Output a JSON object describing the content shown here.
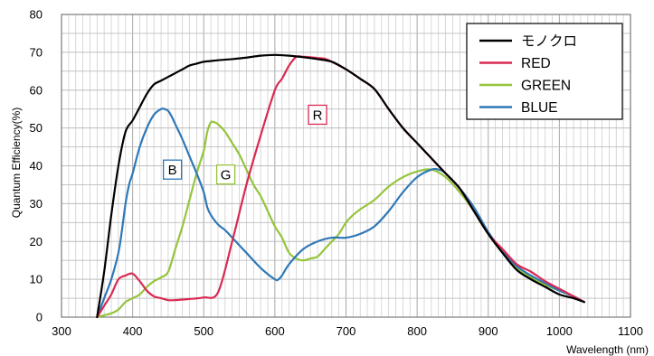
{
  "chart_data": {
    "type": "line",
    "xlabel": "Wavelength (nm)",
    "ylabel": "Quantum Efficiency(%)",
    "xlim": [
      300,
      1100
    ],
    "ylim": [
      0,
      80
    ],
    "xticks": [
      "300",
      "400",
      "500",
      "600",
      "700",
      "800",
      "900",
      "1000",
      "1100"
    ],
    "yticks": [
      "0",
      "10",
      "20",
      "30",
      "40",
      "50",
      "60",
      "70",
      "80"
    ],
    "grid": true,
    "legend_position": "top-right",
    "series": [
      {
        "name": "モノクロ",
        "color": "#000000",
        "x": [
          350,
          360,
          370,
          380,
          390,
          400,
          410,
          420,
          430,
          440,
          450,
          460,
          470,
          480,
          490,
          500,
          510,
          520,
          540,
          560,
          580,
          600,
          620,
          640,
          660,
          680,
          700,
          720,
          740,
          760,
          780,
          800,
          820,
          840,
          860,
          880,
          900,
          920,
          940,
          960,
          980,
          1000,
          1020,
          1035
        ],
        "y": [
          0,
          12,
          27,
          40,
          49,
          52,
          55.5,
          59,
          61.5,
          62.5,
          63.5,
          64.5,
          65.5,
          66.5,
          67,
          67.5,
          67.7,
          67.9,
          68.2,
          68.6,
          69.1,
          69.3,
          69.1,
          68.7,
          68.2,
          67.5,
          65.5,
          63,
          60.3,
          55,
          50,
          46,
          42,
          38,
          34,
          28,
          22,
          17,
          12.5,
          10,
          8,
          6,
          5,
          4
        ]
      },
      {
        "name": "RED",
        "color": "#d92a52",
        "x": [
          350,
          360,
          370,
          380,
          390,
          400,
          410,
          420,
          430,
          440,
          450,
          460,
          480,
          500,
          520,
          540,
          560,
          580,
          600,
          610,
          620,
          630,
          640,
          650,
          660,
          670,
          680,
          700,
          720,
          740,
          760,
          780,
          800,
          820,
          840,
          860,
          880,
          900,
          920,
          940,
          960,
          980,
          1000,
          1020,
          1035
        ],
        "y": [
          0,
          3,
          6,
          10,
          11,
          11.5,
          9.5,
          7,
          5.5,
          5,
          4.5,
          4.5,
          4.8,
          5.2,
          6.5,
          20,
          35,
          48,
          60,
          63,
          66.5,
          68.8,
          68.8,
          68.7,
          68.5,
          68.3,
          67.5,
          65.5,
          63,
          60.3,
          55,
          50,
          46,
          42,
          38,
          34,
          28,
          22,
          18,
          14,
          12,
          9.5,
          7.5,
          5.5,
          4
        ]
      },
      {
        "name": "GREEN",
        "color": "#95c43c",
        "x": [
          350,
          360,
          370,
          380,
          390,
          400,
          410,
          420,
          430,
          440,
          450,
          460,
          470,
          480,
          490,
          500,
          505,
          510,
          515,
          520,
          530,
          540,
          550,
          560,
          570,
          580,
          590,
          600,
          610,
          620,
          630,
          640,
          650,
          660,
          670,
          680,
          690,
          700,
          710,
          720,
          740,
          760,
          780,
          800,
          820,
          840,
          860,
          880,
          900,
          920,
          940,
          960,
          980,
          1000,
          1020,
          1035
        ],
        "y": [
          0,
          0.5,
          1,
          2,
          4,
          5,
          6,
          8,
          9.5,
          10.5,
          12,
          18,
          24,
          31,
          38,
          44,
          49,
          51.5,
          51.5,
          51,
          49,
          46,
          43,
          39,
          35,
          32,
          28,
          24,
          21,
          17,
          15.5,
          15,
          15.5,
          16,
          18,
          20,
          22,
          25,
          27,
          28.5,
          31,
          34.5,
          37,
          38.5,
          39,
          37,
          33,
          28,
          22,
          17,
          13,
          10.5,
          8.5,
          7,
          5.5,
          4
        ]
      },
      {
        "name": "BLUE",
        "color": "#2f78b7",
        "x": [
          350,
          360,
          370,
          380,
          385,
          390,
          395,
          400,
          410,
          420,
          430,
          440,
          445,
          450,
          455,
          460,
          470,
          480,
          490,
          500,
          505,
          510,
          520,
          530,
          540,
          560,
          580,
          600,
          605,
          610,
          620,
          640,
          660,
          680,
          700,
          720,
          740,
          760,
          780,
          800,
          820,
          830,
          840,
          860,
          880,
          900,
          920,
          940,
          960,
          980,
          1000,
          1020,
          1035
        ],
        "y": [
          0,
          5,
          10,
          17,
          23,
          30,
          35,
          38,
          45,
          50,
          53.5,
          55,
          55,
          54.5,
          53,
          51,
          47,
          42.5,
          38,
          33,
          29,
          27,
          24.5,
          23,
          21,
          17,
          13,
          10,
          10,
          11,
          14,
          18,
          20,
          21,
          21,
          22,
          24,
          28,
          33,
          37,
          39,
          39,
          38,
          34,
          29,
          22.5,
          17.5,
          13.5,
          11,
          9,
          7,
          5.5,
          4
        ]
      }
    ],
    "annotations": [
      {
        "label": "R",
        "x": 660,
        "y": 53.5,
        "color": "#d92a52"
      },
      {
        "label": "B",
        "x": 456,
        "y": 39,
        "color": "#2f78b7"
      },
      {
        "label": "G",
        "x": 531,
        "y": 37.7,
        "color": "#95c43c"
      }
    ]
  }
}
